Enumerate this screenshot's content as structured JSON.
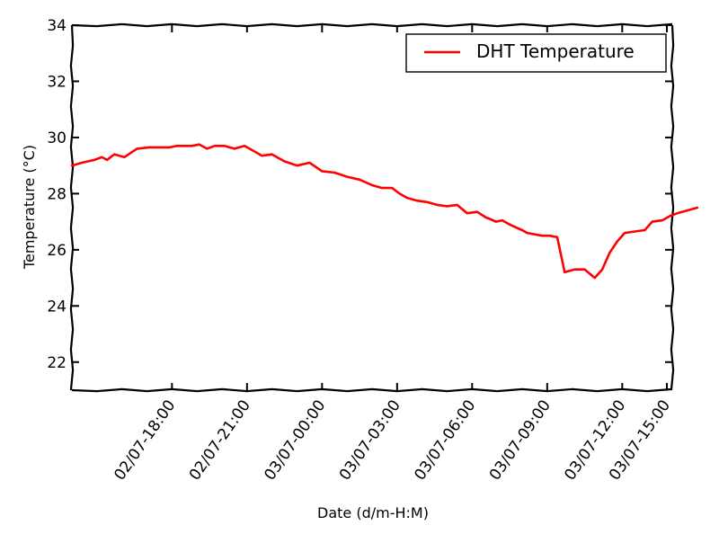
{
  "chart_data": {
    "type": "line",
    "xlabel": "Date (d/m-H:M)",
    "ylabel": "Temperature (°C)",
    "ylim": [
      21,
      34
    ],
    "xlim_hours_from_start": [
      0,
      24
    ],
    "x_axis_kind": "datetime",
    "x_start_label": "02/07-14:00",
    "yticks": [
      22,
      24,
      26,
      28,
      30,
      32,
      34
    ],
    "xticks": [
      {
        "label": "02/07-18:00",
        "hour": 4
      },
      {
        "label": "02/07-21:00",
        "hour": 7
      },
      {
        "label": "03/07-00:00",
        "hour": 10
      },
      {
        "label": "03/07-03:00",
        "hour": 13
      },
      {
        "label": "03/07-06:00",
        "hour": 16
      },
      {
        "label": "03/07-09:00",
        "hour": 19
      },
      {
        "label": "03/07-12:00",
        "hour": 22
      },
      {
        "label": "03/07-15:00",
        "hour": 25
      }
    ],
    "grid": false,
    "legend_position": "top-right",
    "series": [
      {
        "name": "DHT Temperature",
        "color": "#ff0000",
        "x_hours": [
          0.0,
          0.4,
          0.9,
          1.2,
          1.4,
          1.7,
          2.1,
          2.6,
          3.1,
          3.6,
          3.9,
          4.2,
          4.4,
          4.8,
          5.1,
          5.4,
          5.7,
          6.1,
          6.5,
          6.9,
          7.3,
          7.6,
          8.0,
          8.5,
          9.0,
          9.5,
          10.0,
          10.5,
          11.0,
          11.5,
          12.0,
          12.4,
          12.8,
          13.1,
          13.4,
          13.8,
          14.2,
          14.6,
          15.0,
          15.4,
          15.8,
          16.2,
          16.55,
          16.7,
          16.95,
          17.2,
          17.5,
          17.75,
          18.0,
          18.2,
          18.5,
          18.8,
          19.1,
          19.4,
          19.7,
          20.1,
          20.5,
          20.9,
          21.2,
          21.5,
          21.8,
          22.1,
          22.5,
          22.9,
          23.2,
          23.6,
          23.9,
          24.2,
          24.6,
          25.0
        ],
        "values": [
          29.0,
          29.1,
          29.2,
          29.3,
          29.2,
          29.4,
          29.3,
          29.6,
          29.65,
          29.65,
          29.65,
          29.7,
          29.7,
          29.7,
          29.75,
          29.6,
          29.7,
          29.7,
          29.6,
          29.7,
          29.5,
          29.35,
          29.4,
          29.15,
          29.0,
          29.1,
          28.8,
          28.75,
          28.6,
          28.5,
          28.3,
          28.2,
          28.2,
          28.0,
          27.85,
          27.75,
          27.7,
          27.6,
          27.55,
          27.6,
          27.3,
          27.35,
          27.15,
          27.1,
          27.0,
          27.05,
          26.9,
          26.8,
          26.7,
          26.6,
          26.55,
          26.5,
          26.5,
          26.45,
          25.2,
          25.3,
          25.3,
          25.0,
          25.3,
          25.9,
          26.3,
          26.6,
          26.65,
          26.7,
          27.0,
          27.05,
          27.2,
          27.3,
          27.4,
          27.5
        ]
      }
    ]
  }
}
